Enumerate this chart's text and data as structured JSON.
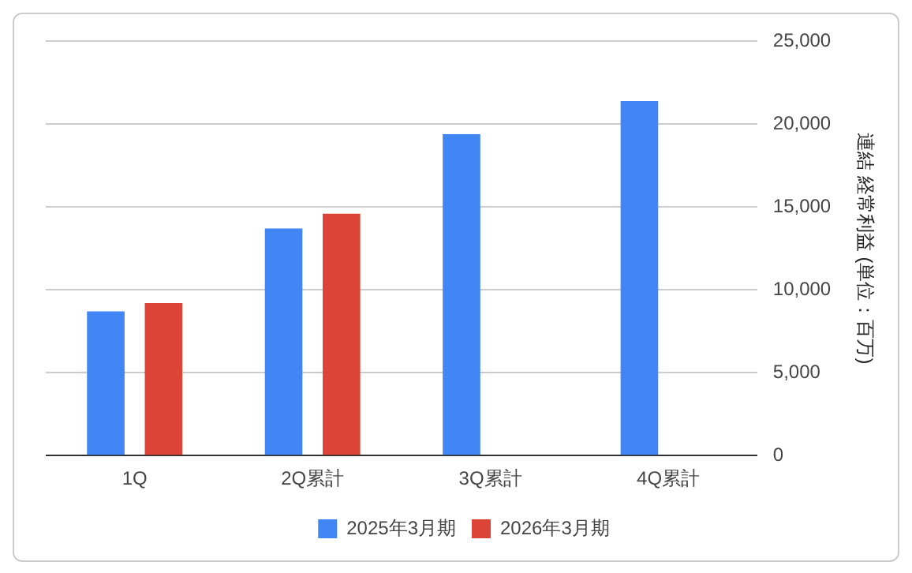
{
  "chart_data": {
    "type": "bar",
    "ylabel": "連結 経常利益 (単位：百万)",
    "categories": [
      "1Q",
      "2Q累計",
      "3Q累計",
      "4Q累計"
    ],
    "series": [
      {
        "name": "2025年3月期",
        "color": "#4285f4",
        "values": [
          8700,
          13700,
          19400,
          21400
        ]
      },
      {
        "name": "2026年3月期",
        "color": "#db4437",
        "values": [
          9200,
          14600,
          null,
          null
        ]
      }
    ],
    "ylim": [
      0,
      25000
    ],
    "yticks": [
      {
        "value": 0,
        "label": "0"
      },
      {
        "value": 5000,
        "label": "5,000"
      },
      {
        "value": 10000,
        "label": "10,000"
      },
      {
        "value": 15000,
        "label": "15,000"
      },
      {
        "value": 20000,
        "label": "20,000"
      },
      {
        "value": 25000,
        "label": "25,000"
      }
    ],
    "grid": "y",
    "legend": "bottom"
  }
}
